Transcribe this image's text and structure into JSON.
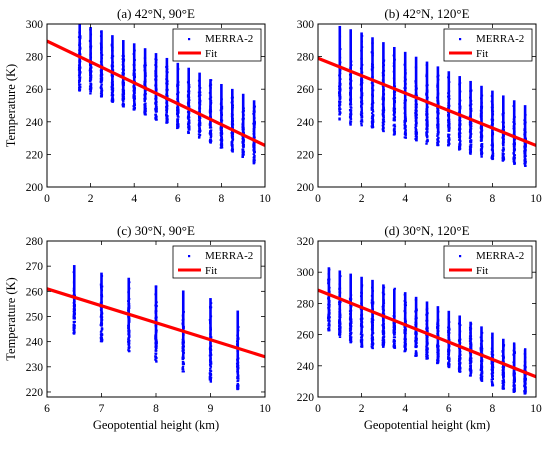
{
  "chart_data": [
    {
      "type": "scatter",
      "title": "(a) 42°N, 90°E",
      "xlabel": "",
      "ylabel": "Temperature (K)",
      "xlim": [
        0,
        10
      ],
      "ylim": [
        200,
        300
      ],
      "x_ticks": [
        0,
        2,
        4,
        6,
        8,
        10
      ],
      "y_ticks": [
        200,
        220,
        240,
        260,
        280,
        300
      ],
      "legend": [
        "MERRA-2",
        "Fit"
      ],
      "legend_placement": "top-right",
      "scatter": {
        "name": "MERRA-2",
        "color": "#0000ff",
        "x": [
          1.5,
          2.0,
          2.5,
          3.0,
          3.5,
          4.0,
          4.5,
          5.0,
          5.5,
          6.0,
          6.5,
          7.0,
          7.5,
          8.0,
          8.5,
          9.0,
          9.5
        ],
        "y_min": [
          259,
          257,
          255,
          252,
          249,
          247,
          244,
          241,
          239,
          236,
          233,
          230,
          227,
          224,
          221,
          218,
          214
        ],
        "y_max": [
          301,
          299,
          297,
          294,
          291,
          289,
          286,
          283,
          280,
          277,
          274,
          271,
          267,
          264,
          261,
          258,
          254
        ]
      },
      "fit": {
        "name": "Fit",
        "color": "#ff0000",
        "x": [
          0,
          10
        ],
        "y": [
          289.5,
          225.5
        ]
      }
    },
    {
      "type": "scatter",
      "title": "(b) 42°N, 120°E",
      "xlabel": "",
      "ylabel": "",
      "xlim": [
        0,
        10
      ],
      "ylim": [
        200,
        300
      ],
      "x_ticks": [
        0,
        2,
        4,
        6,
        8,
        10
      ],
      "y_ticks": [
        200,
        220,
        240,
        260,
        280,
        300
      ],
      "legend": [
        "MERRA-2",
        "Fit"
      ],
      "legend_placement": "top-right",
      "scatter": {
        "name": "MERRA-2",
        "color": "#0000ff",
        "x": [
          1.0,
          1.5,
          2.0,
          2.5,
          3.0,
          3.5,
          4.0,
          4.5,
          5.0,
          5.5,
          6.0,
          6.5,
          7.0,
          7.5,
          8.0,
          8.5,
          9.0,
          9.5
        ],
        "y_min": [
          240,
          238,
          237,
          236,
          234,
          232,
          230,
          228,
          226,
          225,
          223,
          222,
          220,
          218,
          217,
          216,
          214,
          212
        ],
        "y_max": [
          300,
          298,
          296,
          293,
          290,
          287,
          284,
          281,
          278,
          275,
          272,
          269,
          266,
          263,
          260,
          257,
          254,
          251
        ]
      },
      "fit": {
        "name": "Fit",
        "color": "#ff0000",
        "x": [
          0,
          10
        ],
        "y": [
          279,
          225.5
        ]
      }
    },
    {
      "type": "scatter",
      "title": "(c) 30°N, 90°E",
      "xlabel": "Geopotential height (km)",
      "ylabel": "Temperature (K)",
      "xlim": [
        6,
        10
      ],
      "ylim": [
        218,
        280
      ],
      "x_ticks": [
        6,
        7,
        8,
        9,
        10
      ],
      "y_ticks": [
        220,
        230,
        240,
        250,
        260,
        270,
        280
      ],
      "legend": [
        "MERRA-2",
        "Fit"
      ],
      "legend_placement": "top-right",
      "scatter": {
        "name": "MERRA-2",
        "color": "#0000ff",
        "x": [
          6.5,
          7.0,
          7.5,
          8.0,
          8.5,
          9.0,
          9.5
        ],
        "y_min": [
          243,
          240,
          236,
          232,
          228,
          224,
          221
        ],
        "y_max": [
          271,
          268,
          266,
          263,
          261,
          258,
          253
        ]
      },
      "fit": {
        "name": "Fit",
        "color": "#ff0000",
        "x": [
          6,
          10
        ],
        "y": [
          261,
          234
        ]
      }
    },
    {
      "type": "scatter",
      "title": "(d) 30°N, 120°E",
      "xlabel": "Geopotential height (km)",
      "ylabel": "",
      "xlim": [
        0,
        10
      ],
      "ylim": [
        220,
        320
      ],
      "x_ticks": [
        0,
        2,
        4,
        6,
        8,
        10
      ],
      "y_ticks": [
        220,
        240,
        260,
        280,
        300,
        320
      ],
      "legend": [
        "MERRA-2",
        "Fit"
      ],
      "legend_placement": "top-right",
      "scatter": {
        "name": "MERRA-2",
        "color": "#0000ff",
        "x": [
          0.5,
          1.0,
          1.5,
          2.0,
          2.5,
          3.0,
          3.5,
          4.0,
          4.5,
          5.0,
          5.5,
          6.0,
          6.5,
          7.0,
          7.5,
          8.0,
          8.5,
          9.0,
          9.5
        ],
        "y_min": [
          262,
          258,
          255,
          252,
          251,
          252,
          251,
          249,
          246,
          244,
          241,
          239,
          236,
          233,
          230,
          227,
          225,
          223,
          222
        ],
        "y_max": [
          304,
          302,
          300,
          298,
          296,
          293,
          290,
          288,
          285,
          282,
          279,
          276,
          273,
          269,
          266,
          262,
          258,
          255,
          251
        ]
      },
      "fit": {
        "name": "Fit",
        "color": "#ff0000",
        "x": [
          0,
          10
        ],
        "y": [
          288.5,
          233
        ]
      }
    }
  ]
}
